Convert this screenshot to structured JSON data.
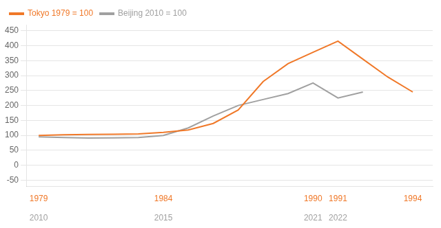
{
  "chart_data": {
    "type": "line",
    "series": [
      {
        "name": "Tokyo 1979 = 100",
        "color": "#F07828",
        "x": [
          1979,
          1980,
          1981,
          1982,
          1983,
          1984,
          1985,
          1986,
          1987,
          1988,
          1989,
          1990,
          1991,
          1992,
          1993,
          1994
        ],
        "values": [
          100,
          102,
          103,
          104,
          105,
          110,
          118,
          140,
          185,
          280,
          340,
          378,
          415,
          355,
          295,
          245
        ]
      },
      {
        "name": "Beijing 2010 = 100",
        "color": "#A0A0A0",
        "axis": "x2",
        "x": [
          1979,
          1980,
          1981,
          1982,
          1983,
          1984,
          1985,
          1986,
          1987,
          1988,
          1989,
          1990,
          1991,
          1992
        ],
        "values": [
          95,
          93,
          91,
          92,
          93,
          100,
          125,
          165,
          200,
          220,
          240,
          275,
          225,
          245
        ]
      }
    ],
    "xlim": [
      1978.5,
      1994.8
    ],
    "xticks": [
      1979,
      1984,
      1990,
      1991,
      1994
    ],
    "x2lim": [
      1978.5,
      1994.8
    ],
    "x2ticks": [
      {
        "value": 1979,
        "label": "2010"
      },
      {
        "value": 1984,
        "label": "2015"
      },
      {
        "value": 1990,
        "label": "2021"
      },
      {
        "value": 1991,
        "label": "2022"
      }
    ],
    "ylim": [
      -70,
      470
    ],
    "yticks": [
      -50,
      0,
      50,
      100,
      150,
      200,
      250,
      300,
      350,
      400,
      450
    ],
    "grid": "y",
    "legend": "upper left"
  }
}
